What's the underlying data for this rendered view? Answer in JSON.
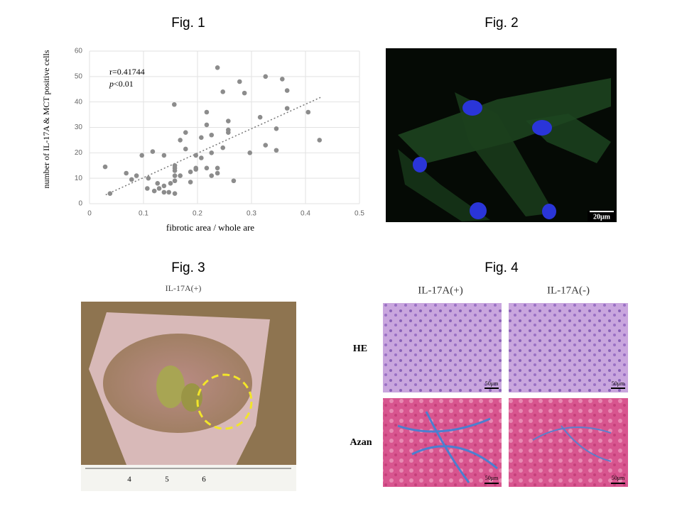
{
  "chart_data": {
    "type": "scatter",
    "x_label": "fibrotic  area  /  whole  are",
    "y_label": "number  of  IL-17A & MCT positive  cells",
    "annotation_r": "r=0.41744",
    "annotation_p": [
      "p",
      "<0.01"
    ],
    "x": [
      0.029,
      0.038,
      0.068,
      0.078,
      0.087,
      0.097,
      0.107,
      0.109,
      0.117,
      0.12,
      0.126,
      0.129,
      0.138,
      0.138,
      0.138,
      0.147,
      0.15,
      0.157,
      0.158,
      0.158,
      0.158,
      0.158,
      0.158,
      0.158,
      0.168,
      0.168,
      0.178,
      0.178,
      0.187,
      0.187,
      0.197,
      0.197,
      0.197,
      0.207,
      0.207,
      0.217,
      0.217,
      0.217,
      0.226,
      0.226,
      0.226,
      0.237,
      0.237,
      0.237,
      0.247,
      0.247,
      0.257,
      0.257,
      0.257,
      0.267,
      0.278,
      0.287,
      0.297,
      0.316,
      0.326,
      0.326,
      0.346,
      0.346,
      0.357,
      0.366,
      0.366,
      0.405,
      0.426
    ],
    "y": [
      14.5,
      4,
      12,
      9.5,
      11,
      19,
      6,
      10,
      20.5,
      5,
      8,
      6,
      19,
      7,
      4.5,
      4.5,
      8,
      39,
      15,
      14,
      13,
      11,
      9,
      4,
      25,
      11,
      28,
      21.5,
      12.5,
      8.5,
      19,
      14,
      13.5,
      26,
      18,
      36,
      31,
      14,
      27,
      20,
      11,
      53.5,
      14,
      12,
      44,
      22,
      32.5,
      29,
      28,
      9,
      48,
      43.5,
      20,
      34,
      50,
      23,
      29.5,
      21,
      49,
      44.5,
      37.5,
      36,
      25
    ],
    "color": "#8c8c8c",
    "trendline": {
      "x": [
        0.03,
        0.43
      ],
      "y": [
        3.5,
        42
      ]
    },
    "xlim": [
      0,
      0.5
    ],
    "xticks": [
      0,
      0.1,
      0.2,
      0.3,
      0.4,
      0.5
    ],
    "ylim": [
      0,
      60
    ],
    "yticks": [
      0,
      10,
      20,
      30,
      40,
      50,
      60
    ],
    "grid": true
  },
  "figures": {
    "fig1": "Fig. 1",
    "fig2": "Fig. 2",
    "fig3": "Fig. 3",
    "fig4": "Fig. 4"
  },
  "fig2": {
    "scale_bar": "20μm"
  },
  "fig3": {
    "caption": "IL-17A(+)",
    "ruler": [
      "4",
      "5",
      "6"
    ]
  },
  "fig4": {
    "columns": [
      "IL-17A(+)",
      "IL-17A(-)"
    ],
    "rows": [
      "HE",
      "Azan"
    ],
    "scale_bars": [
      "50μm",
      "50μm",
      "50μm",
      "50μm"
    ]
  }
}
